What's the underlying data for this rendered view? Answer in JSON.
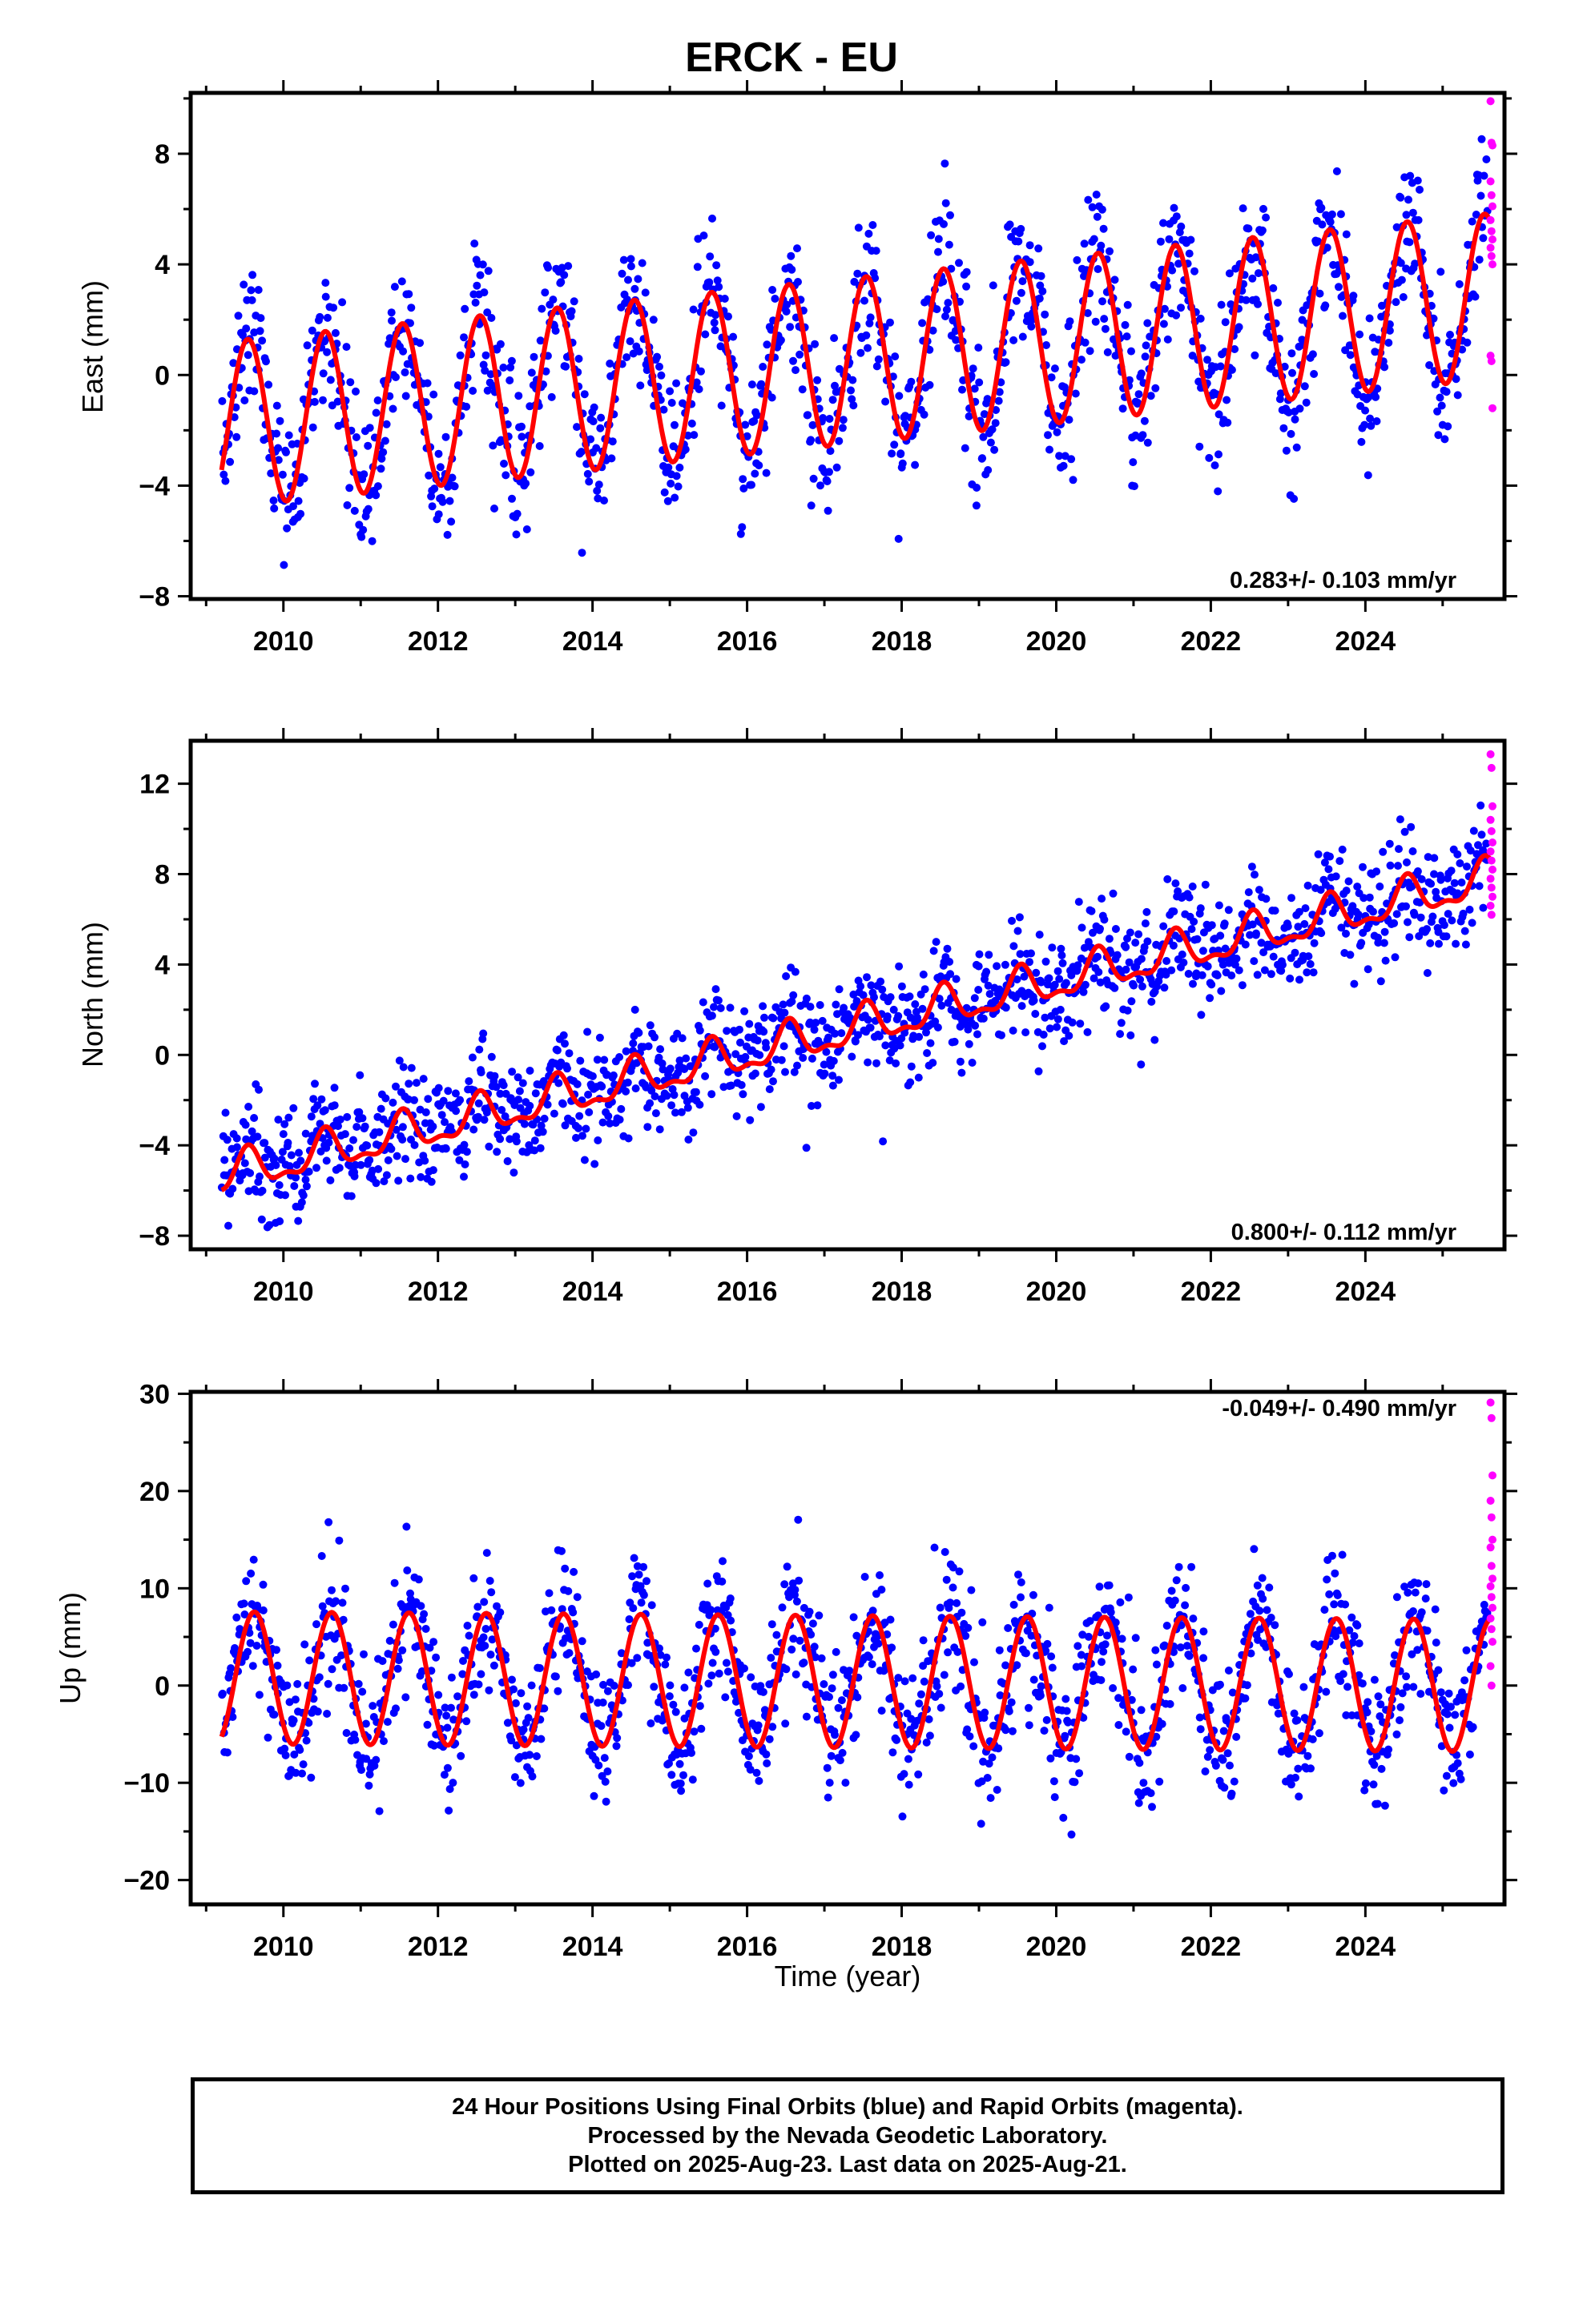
{
  "title": "ERCK - EU",
  "colors": {
    "final_orbits": "#0000ff",
    "rapid_orbits": "#ff00ff",
    "model_fit": "#ff0000",
    "frame": "#000000"
  },
  "footer": {
    "line1": "24 Hour Positions Using Final Orbits (blue) and Rapid Orbits (magenta).",
    "line2": "Processed by the Nevada Geodetic Laboratory.",
    "line3": "Plotted on 2025-Aug-23. Last data on 2025-Aug-21."
  },
  "chart_data": [
    {
      "type": "scatter",
      "component": "East",
      "ylabel": "East (mm)",
      "xlabel": "",
      "xlim": [
        2008.8,
        2025.8
      ],
      "ylim": [
        -8.1,
        10.2
      ],
      "xticks": [
        2010,
        2012,
        2014,
        2016,
        2018,
        2020,
        2022,
        2024
      ],
      "yticks": [
        -8,
        -4,
        0,
        4,
        8
      ],
      "rate_label": "0.283+/- 0.103 mm/yr",
      "rate_label_position": "bottom-right",
      "data_start": 2009.2,
      "data_end": 2025.58,
      "fit": {
        "offset_at_start": -1.8,
        "rate_mm_per_yr": 0.283,
        "annual_amplitude": 3.0,
        "annual_peak_month": 7,
        "semiannual_amplitude": 0.0
      },
      "scatter_sd": 1.3,
      "series": [
        {
          "name": "Final Orbits (blue)",
          "color": "#0000ff"
        },
        {
          "name": "Rapid Orbits (magenta)",
          "color": "#ff00ff",
          "values": [
            9.9,
            8.4,
            8.3,
            7.0,
            6.5,
            6.1,
            5.6,
            5.2,
            4.9,
            4.6,
            4.3,
            4.0,
            0.7,
            0.5,
            -1.2
          ]
        }
      ]
    },
    {
      "type": "scatter",
      "component": "North",
      "ylabel": "North (mm)",
      "xlabel": "",
      "xlim": [
        2008.8,
        2025.8
      ],
      "ylim": [
        -8.6,
        13.9
      ],
      "xticks": [
        2010,
        2012,
        2014,
        2016,
        2018,
        2020,
        2022,
        2024
      ],
      "yticks": [
        -8,
        -4,
        0,
        4,
        8,
        12
      ],
      "rate_label": "0.800+/- 0.112 mm/yr",
      "rate_label_position": "bottom-right",
      "data_start": 2009.2,
      "data_end": 2025.58,
      "fit": {
        "offset_at_start": -5.4,
        "rate_mm_per_yr": 0.8,
        "annual_amplitude": 0.8,
        "annual_peak_month": 7,
        "semiannual_amplitude": 0.35
      },
      "scatter_sd": 1.25,
      "series": [
        {
          "name": "Final Orbits (blue)",
          "color": "#0000ff"
        },
        {
          "name": "Rapid Orbits (magenta)",
          "color": "#ff00ff",
          "values": [
            13.3,
            12.7,
            11.0,
            10.4,
            9.9,
            9.4,
            9.0,
            8.6,
            8.2,
            7.8,
            7.4,
            7.0,
            6.6,
            6.2
          ]
        }
      ]
    },
    {
      "type": "scatter",
      "component": "Up",
      "ylabel": "Up (mm)",
      "xlabel": "Time (year)",
      "xlim": [
        2008.8,
        2025.8
      ],
      "ylim": [
        -22.5,
        30.2
      ],
      "xticks": [
        2010,
        2012,
        2014,
        2016,
        2018,
        2020,
        2022,
        2024
      ],
      "yticks": [
        -20,
        -10,
        0,
        10,
        20,
        30
      ],
      "rate_label": "-0.049+/- 0.490 mm/yr",
      "rate_label_position": "top-right",
      "data_start": 2009.2,
      "data_end": 2025.58,
      "fit": {
        "offset_at_start": 0.8,
        "rate_mm_per_yr": -0.049,
        "annual_amplitude": 6.8,
        "annual_peak_month": 8,
        "semiannual_amplitude": 0.0
      },
      "scatter_sd": 3.6,
      "series": [
        {
          "name": "Final Orbits (blue)",
          "color": "#0000ff"
        },
        {
          "name": "Rapid Orbits (magenta)",
          "color": "#ff00ff",
          "values": [
            29.1,
            27.5,
            21.6,
            19.0,
            17.3,
            15.0,
            14.2,
            12.3,
            11.0,
            10.2,
            9.1,
            8.0,
            6.9,
            5.8,
            4.5,
            2.0,
            0.0
          ]
        }
      ]
    }
  ]
}
